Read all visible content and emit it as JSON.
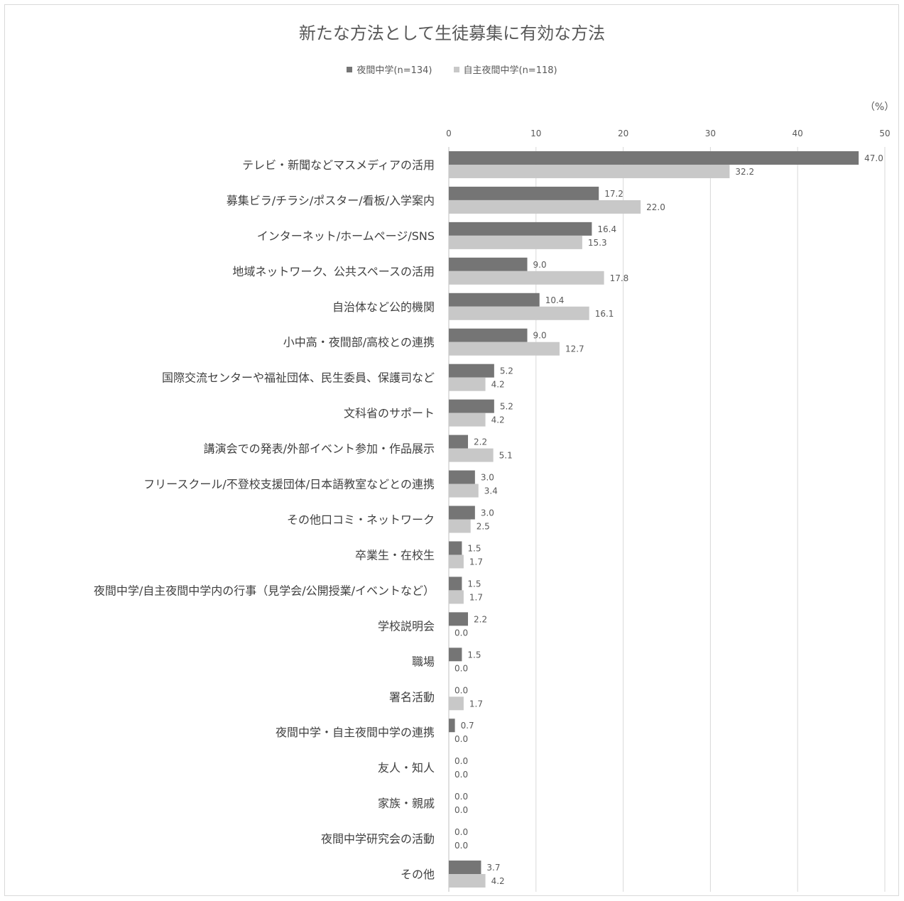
{
  "chart_data": {
    "type": "bar",
    "orientation": "horizontal",
    "title": "新たな方法として生徒募集に有効な方法",
    "unit": "（%）",
    "x_ticks": [
      "0",
      "10",
      "20",
      "30",
      "40",
      "50"
    ],
    "xlim": [
      0,
      50
    ],
    "grid": true,
    "legend_position": "top",
    "categories": [
      "テレビ・新聞などマスメディアの活用",
      "募集ビラ/チラシ/ポスター/看板/入学案内",
      "インターネット/ホームページ/SNS",
      "地域ネットワーク、公共スペースの活用",
      "自治体など公的機関",
      "小中高・夜間部/高校との連携",
      "国際交流センターや福祉団体、民生委員、保護司など",
      "文科省のサポート",
      "講演会での発表/外部イベント参加・作品展示",
      "フリースクール/不登校支援団体/日本語教室などとの連携",
      "その他口コミ・ネットワーク",
      "卒業生・在校生",
      "夜間中学/自主夜間中学内の行事（見学会/公開授業/イベントなど）",
      "学校説明会",
      "職場",
      "署名活動",
      "夜間中学・自主夜間中学の連携",
      "友人・知人",
      "家族・親戚",
      "夜間中学研究会の活動",
      "その他"
    ],
    "series": [
      {
        "name": "夜間中学(n=134)",
        "color": "#757575",
        "values": [
          47.0,
          17.2,
          16.4,
          9.0,
          10.4,
          9.0,
          5.2,
          5.2,
          2.2,
          3.0,
          3.0,
          1.5,
          1.5,
          2.2,
          1.5,
          0.0,
          0.7,
          0.0,
          0.0,
          0.0,
          3.7
        ],
        "labels": [
          "47.0",
          "17.2",
          "16.4",
          "9.0",
          "10.4",
          "9.0",
          "5.2",
          "5.2",
          "2.2",
          "3.0",
          "3.0",
          "1.5",
          "1.5",
          "2.2",
          "1.5",
          "0.0",
          "0.7",
          "0.0",
          "0.0",
          "0.0",
          "3.7"
        ]
      },
      {
        "name": "自主夜間中学(n=118)",
        "color": "#c8c8c8",
        "values": [
          32.2,
          22.0,
          15.3,
          17.8,
          16.1,
          12.7,
          4.2,
          4.2,
          5.1,
          3.4,
          2.5,
          1.7,
          1.7,
          0.0,
          0.0,
          1.7,
          0.0,
          0.0,
          0.0,
          0.0,
          4.2
        ],
        "labels": [
          "32.2",
          "22.0",
          "15.3",
          "17.8",
          "16.1",
          "12.7",
          "4.2",
          "4.2",
          "5.1",
          "3.4",
          "2.5",
          "1.7",
          "1.7",
          "0.0",
          "0.0",
          "1.7",
          "0.0",
          "0.0",
          "0.0",
          "0.0",
          "4.2"
        ]
      }
    ]
  }
}
